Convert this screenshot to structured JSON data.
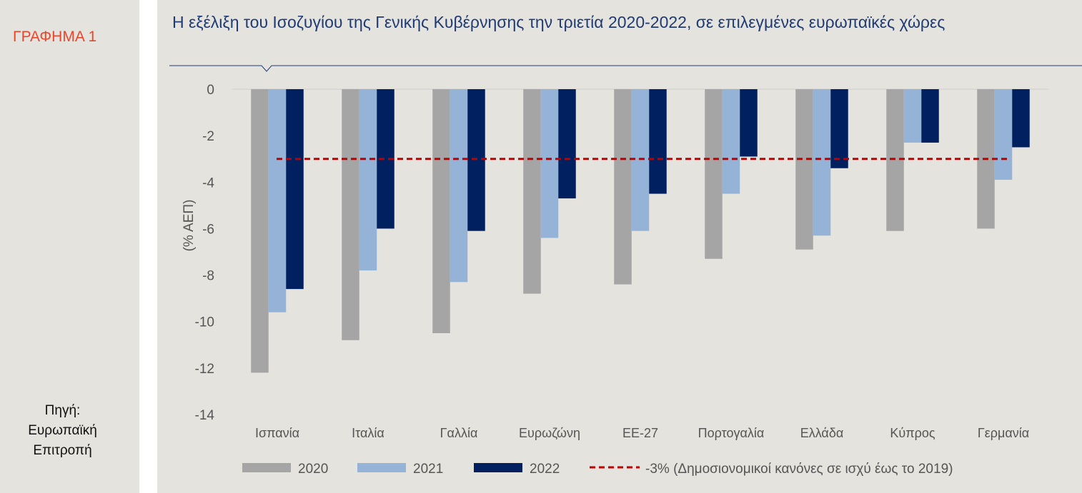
{
  "side": {
    "figure_label": "ΓΡΑΦΗΜΑ 1",
    "source_lines": [
      "Πηγή:",
      "Ευρωπαϊκή",
      "Επιτροπή"
    ]
  },
  "chart_data": {
    "type": "bar",
    "title": "Η εξέλιξη του Ισοζυγίου της Γενικής Κυβέρνησης την τριετία 2020-2022, σε επιλεγμένες ευρωπαϊκές χώρες",
    "xlabel": "",
    "ylabel": "(% ΑΕΠ)",
    "ylim": [
      -14,
      0
    ],
    "yticks": [
      "0",
      "-2",
      "-4",
      "-6",
      "-8",
      "-10",
      "-12",
      "-14"
    ],
    "categories": [
      "Ισπανία",
      "Ιταλία",
      "Γαλλία",
      "Ευρωζώνη",
      "ΕΕ-27",
      "Πορτογαλία",
      "Ελλάδα",
      "Κύπρος",
      "Γερμανία"
    ],
    "series": [
      {
        "name": "2020",
        "color": "#a5a5a5",
        "values": [
          -12.2,
          -10.8,
          -10.5,
          -8.8,
          -8.4,
          -7.3,
          -6.9,
          -6.1,
          -6.0
        ]
      },
      {
        "name": "2021",
        "color": "#95b3d7",
        "values": [
          -9.6,
          -7.8,
          -8.3,
          -6.4,
          -6.1,
          -4.5,
          -6.3,
          -2.3,
          -3.9
        ]
      },
      {
        "name": "2022",
        "color": "#002060",
        "values": [
          -8.6,
          -6.0,
          -6.1,
          -4.7,
          -4.5,
          -2.9,
          -3.4,
          -2.3,
          -2.5
        ]
      }
    ],
    "reference_line": {
      "name": "-3% (Δημοσιονομικοί κανόνες σε ισχύ έως το 2019)",
      "value": -3,
      "color": "#c00000"
    },
    "grid": false,
    "legend_position": "bottom"
  }
}
